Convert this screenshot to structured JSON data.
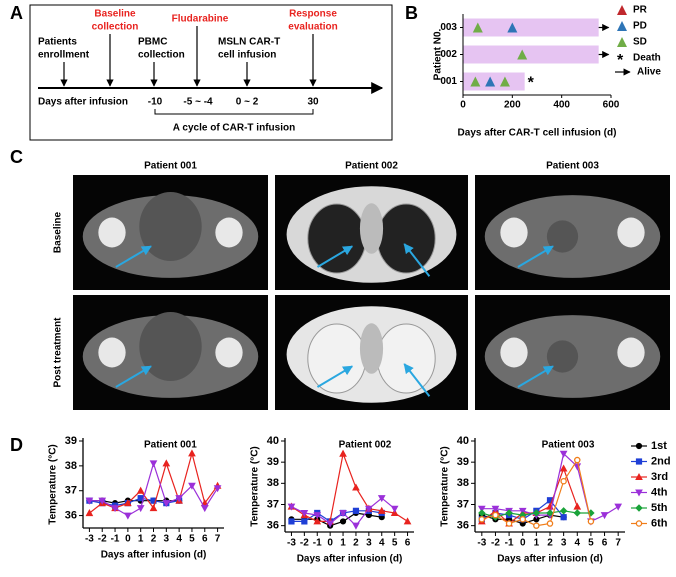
{
  "panels": [
    "A",
    "B",
    "C",
    "D"
  ],
  "timeline": {
    "events": [
      {
        "lines": [
          "Patients",
          "enrollment"
        ],
        "color": "#000000"
      },
      {
        "lines": [
          "Baseline",
          "collection"
        ],
        "color": "#e8231f"
      },
      {
        "lines": [
          "PBMC",
          "collection"
        ],
        "color": "#000000"
      },
      {
        "lines": [
          "Fludarabine"
        ],
        "color": "#e8231f"
      },
      {
        "lines": [
          "MSLN CAR-T",
          "cell infusion"
        ],
        "color": "#000000"
      },
      {
        "lines": [
          "Response",
          "evaluation"
        ],
        "color": "#e8231f"
      }
    ],
    "axis_label": "Days after infusion",
    "day_labels": [
      "-10",
      "-5 ~ -4",
      "0 ~ 2",
      "30"
    ],
    "bracket_label": "A cycle of CAR-T infusion"
  },
  "ct": {
    "columns": [
      "Patient 001",
      "Patient 002",
      "Patient 003"
    ],
    "rows": [
      "Baseline",
      "Post treatment"
    ]
  },
  "chart_data": [
    {
      "type": "swimmer",
      "categories": [
        "003",
        "002",
        "001"
      ],
      "values": [
        550,
        550,
        250
      ],
      "bar_color": "#e6c4f2",
      "outcomes": [
        "Alive",
        "Alive",
        "Death"
      ],
      "series": [
        {
          "name": "PR",
          "color": "#c0282d",
          "values": [
            [],
            [],
            []
          ]
        },
        {
          "name": "PD",
          "color": "#2e75b6",
          "values": [
            [
              200
            ],
            [],
            [
              110
            ]
          ]
        },
        {
          "name": "SD",
          "color": "#70ad47",
          "values": [
            [
              60
            ],
            [
              240
            ],
            [
              50,
              170
            ]
          ]
        }
      ],
      "end_markers": [
        {
          "name": "Death",
          "symbol": "*"
        },
        {
          "name": "Alive"
        }
      ],
      "xlabel": "Days after  CAR-T cell infusion (d)",
      "ylabel": "Patient N0.",
      "xlim": [
        0,
        600
      ],
      "xticks": [
        0,
        200,
        400,
        600
      ]
    },
    {
      "type": "line",
      "title": "Patient 001",
      "xlabel": "Days after infusion (d)",
      "ylabel": "Temperature (°C)",
      "x": [
        -3,
        -2,
        -1,
        0,
        1,
        2,
        3,
        4,
        5,
        6,
        7
      ],
      "xlim": [
        -3.5,
        7.5
      ],
      "xticks": [
        -3,
        -2,
        -1,
        0,
        1,
        2,
        3,
        4,
        5,
        6,
        7
      ],
      "ylim": [
        35.5,
        39
      ],
      "yticks": [
        36,
        37,
        38,
        39
      ],
      "legend": false,
      "series": [
        {
          "name": "1st",
          "color": "#000000",
          "marker": "circle",
          "values": [
            36.6,
            36.6,
            36.5,
            36.6,
            36.6,
            36.6,
            36.6,
            36.6,
            null,
            null,
            null
          ]
        },
        {
          "name": "2nd",
          "color": "#1f3fd6",
          "marker": "square",
          "values": [
            36.6,
            36.5,
            36.4,
            36.5,
            36.7,
            36.6,
            36.5,
            36.6,
            null,
            null,
            null
          ]
        },
        {
          "name": "3rd",
          "color": "#e8231f",
          "marker": "triangle",
          "values": [
            36.1,
            36.5,
            36.3,
            36.5,
            37.0,
            36.3,
            38.1,
            36.6,
            38.5,
            36.5,
            37.2
          ]
        },
        {
          "name": "4th",
          "color": "#9b30d9",
          "marker": "triangle-down",
          "values": [
            36.6,
            36.6,
            36.3,
            36.0,
            36.3,
            38.1,
            36.5,
            36.7,
            37.2,
            36.3,
            37.1
          ]
        }
      ]
    },
    {
      "type": "line",
      "title": "Patient 002",
      "xlabel": "Days after infusion (d)",
      "ylabel": "Temperature (°C)",
      "x": [
        -3,
        -2,
        -1,
        0,
        1,
        2,
        3,
        4,
        5,
        6
      ],
      "xlim": [
        -3.5,
        6.5
      ],
      "xticks": [
        -3,
        -2,
        -1,
        0,
        1,
        2,
        3,
        4,
        5,
        6
      ],
      "ylim": [
        35.7,
        40
      ],
      "yticks": [
        36,
        37,
        38,
        39,
        40
      ],
      "legend": false,
      "series": [
        {
          "name": "1st",
          "color": "#000000",
          "marker": "circle",
          "values": [
            36.3,
            36.3,
            36.3,
            36.0,
            36.2,
            36.6,
            36.5,
            36.4,
            null,
            null
          ]
        },
        {
          "name": "2nd",
          "color": "#1f3fd6",
          "marker": "square",
          "values": [
            36.2,
            36.2,
            36.6,
            36.2,
            36.6,
            36.7,
            36.7,
            36.6,
            null,
            null
          ]
        },
        {
          "name": "3rd",
          "color": "#e8231f",
          "marker": "triangle",
          "values": [
            36.9,
            36.5,
            36.2,
            36.2,
            39.4,
            37.8,
            36.8,
            36.7,
            36.6,
            36.2
          ]
        },
        {
          "name": "4th",
          "color": "#9b30d9",
          "marker": "triangle-down",
          "values": [
            36.9,
            36.6,
            36.5,
            36.1,
            36.6,
            36.0,
            36.8,
            37.3,
            36.8,
            null
          ]
        }
      ]
    },
    {
      "type": "line",
      "title": "Patient 003",
      "xlabel": "Days after infusion (d)",
      "ylabel": "Temperature (°C)",
      "x": [
        -3,
        -2,
        -1,
        0,
        1,
        2,
        3,
        4,
        5,
        6,
        7
      ],
      "xlim": [
        -3.5,
        7.5
      ],
      "xticks": [
        -3,
        -2,
        -1,
        0,
        1,
        2,
        3,
        4,
        5,
        6,
        7
      ],
      "ylim": [
        35.7,
        40
      ],
      "yticks": [
        36,
        37,
        38,
        39,
        40
      ],
      "legend": "right",
      "series": [
        {
          "name": "1st",
          "color": "#000000",
          "marker": "circle",
          "values": [
            36.5,
            36.3,
            36.3,
            36.1,
            36.3,
            36.5,
            36.4,
            null,
            null,
            null,
            null
          ]
        },
        {
          "name": "2nd",
          "color": "#1f3fd6",
          "marker": "square",
          "values": [
            36.3,
            36.6,
            36.5,
            36.3,
            36.7,
            37.2,
            36.4,
            null,
            null,
            null,
            null
          ]
        },
        {
          "name": "3rd",
          "color": "#e8231f",
          "marker": "triangle",
          "values": [
            36.2,
            36.7,
            36.1,
            36.6,
            36.6,
            36.9,
            38.7,
            36.9,
            null,
            null,
            null
          ]
        },
        {
          "name": "4th",
          "color": "#9b30d9",
          "marker": "triangle-down",
          "values": [
            36.8,
            36.8,
            36.7,
            36.7,
            36.5,
            36.5,
            39.4,
            38.8,
            36.2,
            36.5,
            36.9
          ]
        },
        {
          "name": "5th",
          "color": "#1aa33a",
          "marker": "diamond",
          "values": [
            36.6,
            36.4,
            36.6,
            36.5,
            36.6,
            36.6,
            36.7,
            36.6,
            36.6,
            null,
            null
          ]
        },
        {
          "name": "6th",
          "color": "#f07d1a",
          "marker": "circle-open",
          "values": [
            36.3,
            36.5,
            36.1,
            36.3,
            36.0,
            36.1,
            38.1,
            39.1,
            36.2,
            null,
            null
          ]
        }
      ]
    }
  ]
}
